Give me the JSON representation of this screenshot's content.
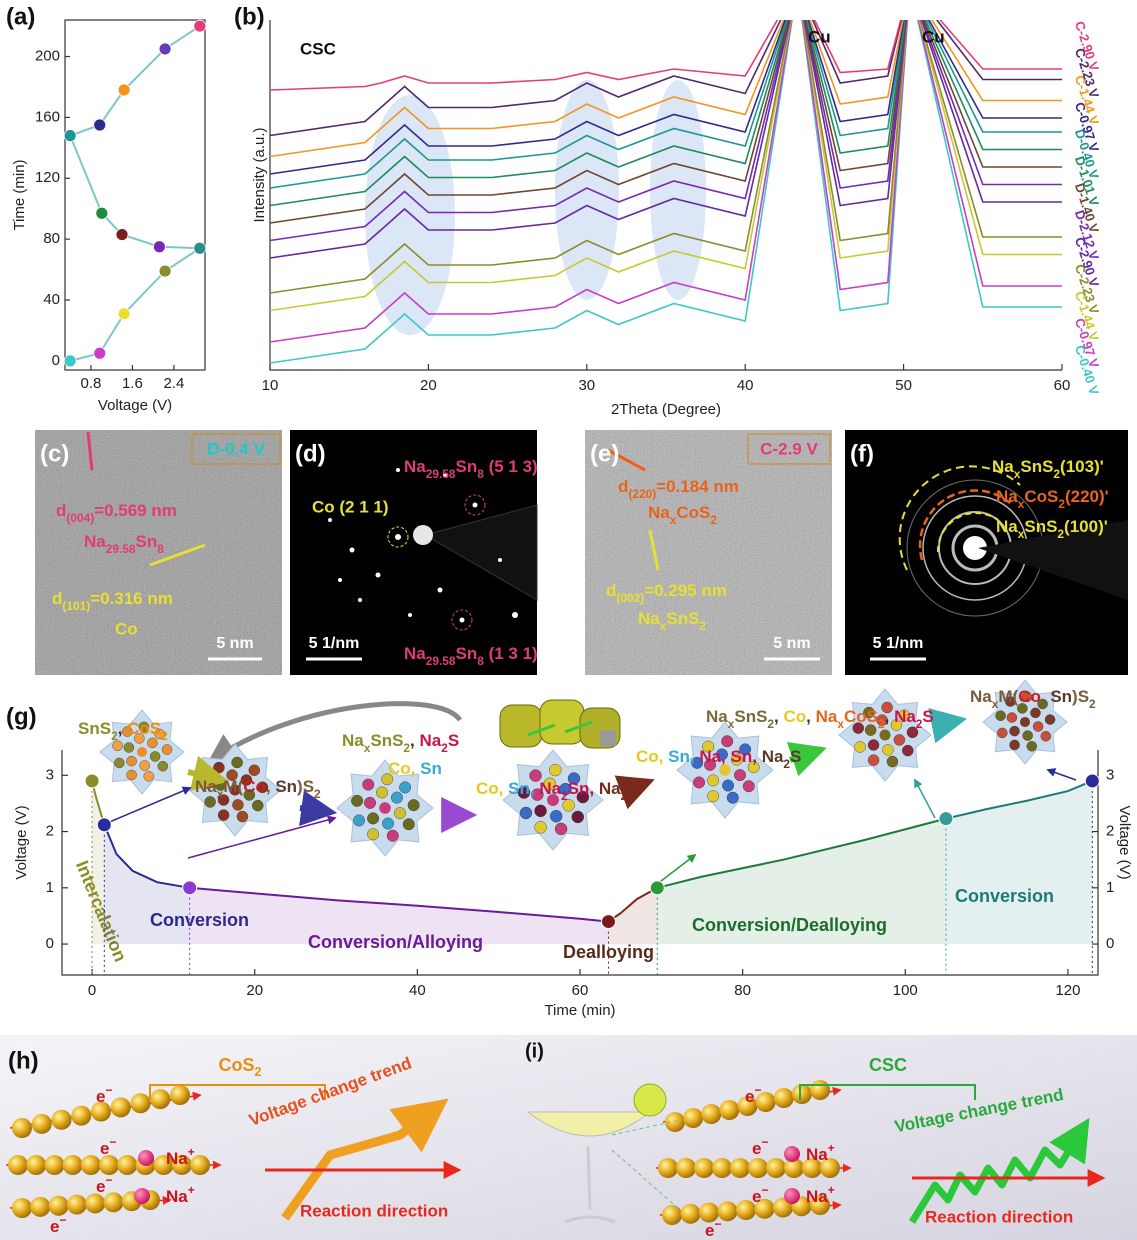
{
  "panel_labels": [
    "(a)",
    "(b)",
    "(c)",
    "(d)",
    "(e)",
    "(f)",
    "(g)",
    "(h)",
    "(i)"
  ],
  "chart_data": [
    {
      "type": "line",
      "xlabel": "Voltage (V)",
      "ylabel": "Time (min)",
      "x": [
        0.4,
        0.97,
        1.44,
        2.23,
        2.9,
        2.12,
        1.4,
        1.01,
        0.4,
        0.97,
        1.44,
        2.23,
        2.9
      ],
      "series": [
        {
          "color": "#7cc8c8",
          "values": [
            0,
            5,
            31,
            59,
            74,
            75,
            83,
            97,
            148,
            155,
            178,
            205,
            220
          ],
          "point_colors": [
            "#3cc8c8",
            "#c83cc8",
            "#e8e030",
            "#8c8c28",
            "#2a8c8c",
            "#7828b4",
            "#7a1e1e",
            "#1e8c3a",
            "#1e9696",
            "#2a2a8c",
            "#f0961e",
            "#6a3ab4",
            "#e63c78"
          ]
        }
      ],
      "xlim": [
        0.3,
        3.0
      ],
      "xticks": [
        0.8,
        1.6,
        2.4
      ],
      "ylim": [
        -6,
        224
      ],
      "yticks": [
        0,
        40,
        80,
        120,
        160,
        200
      ]
    },
    {
      "type": "line",
      "xlabel": "2Theta (Degree)",
      "ylabel": "Intensity (a.u.)",
      "annotations": [
        "CSC",
        "Cu",
        "Cu"
      ],
      "x": [
        10,
        16,
        17,
        18.5,
        20,
        24,
        28,
        30,
        32,
        35.5,
        40,
        43.3,
        46,
        49,
        50.4,
        55,
        60
      ],
      "series": [
        {
          "name": "C-0.40 V",
          "color": "#3cc8c8",
          "values": [
            2,
            6,
            10,
            16,
            10,
            10,
            12,
            17,
            13,
            19,
            14,
            110,
            17,
            19,
            110,
            18,
            18
          ]
        },
        {
          "name": "C-0.97 V",
          "color": "#c83cc8",
          "values": [
            8,
            12,
            16,
            22,
            16,
            16,
            18,
            23,
            19,
            25,
            20,
            110,
            23,
            25,
            110,
            24,
            24
          ]
        },
        {
          "name": "C-1.44 V",
          "color": "#c8c832",
          "values": [
            17,
            21,
            25,
            31,
            25,
            25,
            27,
            32,
            28,
            34,
            29,
            110,
            32,
            34,
            110,
            33,
            33
          ]
        },
        {
          "name": "C-2.23 V",
          "color": "#8c8c28",
          "values": [
            22,
            26,
            30,
            36,
            30,
            30,
            32,
            37,
            33,
            39,
            34,
            110,
            37,
            39,
            110,
            38,
            38
          ]
        },
        {
          "name": "C-2.90 V",
          "color": "#6428a0",
          "values": [
            32,
            36,
            40,
            46,
            40,
            40,
            42,
            47,
            43,
            49,
            44,
            110,
            47,
            49,
            110,
            48,
            48
          ]
        },
        {
          "name": "D-2.12 V",
          "color": "#7828b4",
          "values": [
            37,
            41,
            45,
            51,
            45,
            45,
            47,
            52,
            48,
            54,
            49,
            110,
            52,
            54,
            110,
            53,
            53
          ]
        },
        {
          "name": "D-1.40 V",
          "color": "#6e4632",
          "values": [
            42,
            46,
            50,
            56,
            50,
            50,
            52,
            57,
            53,
            59,
            54,
            110,
            57,
            59,
            110,
            58,
            58
          ]
        },
        {
          "name": "D-1.01 V",
          "color": "#1e8c5a",
          "values": [
            47,
            51,
            55,
            61,
            55,
            55,
            57,
            62,
            58,
            64,
            59,
            110,
            62,
            64,
            110,
            63,
            63
          ]
        },
        {
          "name": "D-0.40 V",
          "color": "#1e9696",
          "values": [
            52,
            56,
            60,
            66,
            60,
            60,
            62,
            67,
            63,
            69,
            64,
            110,
            67,
            69,
            110,
            68,
            68
          ]
        },
        {
          "name": "C-0.97 V",
          "color": "#32288c",
          "values": [
            56,
            60,
            64,
            70,
            64,
            64,
            66,
            71,
            67,
            73,
            68,
            110,
            71,
            73,
            110,
            72,
            72
          ]
        },
        {
          "name": "C-1.44 V",
          "color": "#f0961e",
          "values": [
            61,
            65,
            69,
            75,
            69,
            69,
            71,
            76,
            72,
            78,
            73,
            110,
            76,
            78,
            110,
            77,
            77
          ]
        },
        {
          "name": "C-2.23 V",
          "color": "#50286e",
          "values": [
            67,
            71,
            75,
            81,
            75,
            75,
            77,
            82,
            78,
            84,
            79,
            110,
            82,
            84,
            110,
            83,
            83
          ]
        },
        {
          "name": "C-2.90 V",
          "color": "#e63c78",
          "values": [
            80,
            81,
            82,
            84,
            82,
            82,
            83,
            85,
            83,
            86,
            84,
            110,
            85,
            86,
            110,
            86,
            86
          ]
        }
      ],
      "xlim": [
        10,
        60
      ],
      "xticks": [
        10,
        20,
        30,
        40,
        50,
        60
      ],
      "ylim": [
        0,
        100
      ]
    },
    {
      "type": "line",
      "xlabel": "Time (min)",
      "ylabel": "Voltage (V)",
      "y2label": "Voltage (V)",
      "annotations": [
        "Intercalation",
        "Conversion",
        "Conversion/Alloying",
        "Dealloying",
        "Conversion/Dealloying",
        "Conversion"
      ],
      "series": [
        {
          "color": "#8c8c28",
          "x": [
            0,
            0.5,
            1.5
          ],
          "values": [
            2.9,
            2.6,
            2.12
          ]
        },
        {
          "color": "#2a2a8c",
          "x": [
            1.5,
            3,
            5,
            8,
            12
          ],
          "values": [
            2.12,
            1.6,
            1.3,
            1.1,
            1.0
          ]
        },
        {
          "color": "#6a1a9a",
          "x": [
            12,
            20,
            30,
            40,
            50,
            60,
            63.5
          ],
          "values": [
            1.0,
            0.9,
            0.78,
            0.68,
            0.57,
            0.45,
            0.4
          ]
        },
        {
          "color": "#7a2a1a",
          "x": [
            63.5,
            65,
            67,
            69.5
          ],
          "values": [
            0.4,
            0.55,
            0.8,
            1.0
          ]
        },
        {
          "color": "#1e7a3a",
          "x": [
            69.5,
            75,
            85,
            95,
            105
          ],
          "values": [
            1.0,
            1.2,
            1.5,
            1.85,
            2.23
          ]
        },
        {
          "color": "#1e7a7a",
          "x": [
            105,
            110,
            115,
            120,
            123
          ],
          "values": [
            2.23,
            2.4,
            2.55,
            2.72,
            2.9
          ]
        },
        {
          "type": "scatter",
          "x": [
            0,
            1.5,
            12,
            63.5,
            69.5,
            105,
            123
          ],
          "values": [
            2.9,
            2.12,
            1.0,
            0.4,
            1.0,
            2.23,
            2.9
          ],
          "point_colors": [
            "#8c8c28",
            "#2a2a9a",
            "#8a3ad0",
            "#7a1a1a",
            "#2a9a3a",
            "#3a9a9a",
            "#2a2a9a"
          ]
        }
      ],
      "xlim": [
        -3.7,
        123.7
      ],
      "xticks": [
        0,
        20,
        40,
        60,
        80,
        100,
        120
      ],
      "ylim": [
        -0.55,
        3.45
      ],
      "yticks": [
        0,
        1,
        2,
        3
      ],
      "y2lim": [
        -0.55,
        3.45
      ],
      "y2ticks": [
        0,
        1,
        2,
        3
      ],
      "phase_products": [
        [
          "SnS",
          "2",
          ", ",
          "CoS",
          "2"
        ],
        [
          "Na",
          "x",
          "M(",
          "Co",
          ", ",
          "Sn",
          ")S",
          "2"
        ],
        [
          "Na",
          "x",
          "SnS",
          "2",
          ", ",
          "Na",
          "2",
          "S"
        ],
        [
          "Co",
          ", ",
          "Sn"
        ],
        [
          "Co",
          ", ",
          "Sn",
          ", ",
          "Na",
          "2",
          "Sn",
          ", ",
          "Na",
          "2",
          "S"
        ],
        [
          "Co",
          ", ",
          "Sn",
          ", ",
          "Na",
          ", ",
          "Sn",
          ", ",
          "Na",
          "2",
          "S"
        ],
        [
          "Na",
          "x",
          "SnS",
          "2",
          ", ",
          "Co",
          ", ",
          "Na",
          "x",
          "CoS",
          "2",
          ", ",
          "Na",
          "2",
          "S"
        ],
        [
          "Na",
          "x",
          "M(",
          "Co",
          ", ",
          "Sn",
          ")S",
          "2"
        ]
      ]
    }
  ],
  "micrographs": {
    "c": {
      "state": "D-0.4 V",
      "d_spacing_1": [
        "d",
        "(004)",
        "=0.569 nm"
      ],
      "phase_1": [
        "Na",
        "29.58",
        "Sn",
        "8"
      ],
      "d_spacing_2": [
        "d",
        "(101)",
        "=0.316 nm"
      ],
      "phase_2": "Co",
      "scale_bar": "5 nm"
    },
    "d": {
      "spot_1": [
        "Na",
        "29.58",
        "Sn",
        "8",
        " (5 1 3)"
      ],
      "spot_2": "Co (2 1 1)",
      "spot_3": [
        "Na",
        "29.58",
        "Sn",
        "8",
        " (1 3 1)"
      ],
      "scale_bar": "5 1/nm"
    },
    "e": {
      "state": "C-2.9 V",
      "d_spacing_1": [
        "d",
        "(220)",
        "=0.184 nm"
      ],
      "phase_1": [
        "Na",
        "x",
        "CoS",
        "2"
      ],
      "d_spacing_2": [
        "d",
        "(002)",
        "=0.295 nm"
      ],
      "phase_2": [
        "Na",
        "x",
        "SnS",
        "2"
      ],
      "scale_bar": "5 nm"
    },
    "f": {
      "ring_1": [
        "Na",
        "x",
        "SnS",
        "2",
        "(103)'"
      ],
      "ring_2": [
        "Na",
        "x",
        "CoS",
        "2",
        "(220)'"
      ],
      "ring_3": [
        "Na",
        "x",
        "SnS",
        "2",
        "(100)'"
      ],
      "scale_bar": "5 1/nm"
    }
  },
  "schemes": {
    "h": {
      "material": [
        "CoS",
        "2"
      ],
      "electron": [
        "e",
        "−"
      ],
      "ion": [
        "Na",
        "+"
      ],
      "trend": "Voltage change trend",
      "direction": "Reaction direction"
    },
    "i": {
      "material": "CSC",
      "electron": [
        "e",
        "−"
      ],
      "ion": [
        "Na",
        "+"
      ],
      "trend": "Voltage change trend",
      "direction": "Reaction direction"
    }
  }
}
